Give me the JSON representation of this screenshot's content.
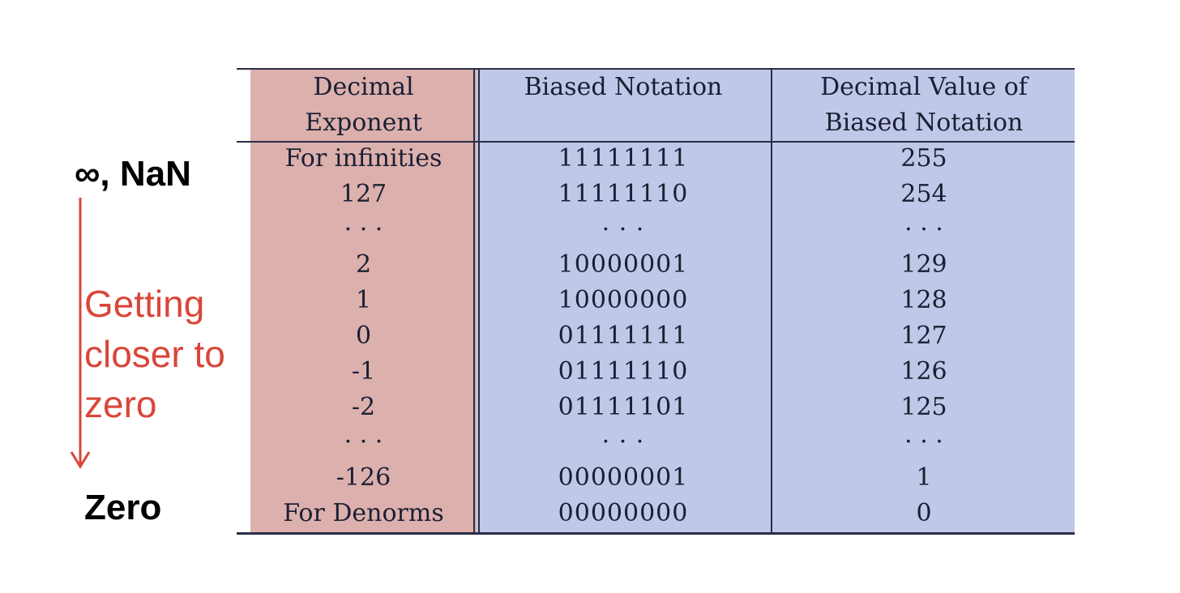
{
  "annotations": {
    "top_label": "∞, NaN",
    "middle_lines": [
      "Getting",
      "closer to",
      "zero"
    ],
    "bottom_label": "Zero",
    "middle_color": "#d9463a"
  },
  "table": {
    "headers": [
      [
        "Decimal",
        "Exponent"
      ],
      [
        "Biased Notation",
        ""
      ],
      [
        "Decimal Value of",
        "Biased Notation"
      ]
    ],
    "rows": [
      [
        "For infinities",
        "11111111",
        "255"
      ],
      [
        "127",
        "11111110",
        "254"
      ],
      [
        "· · ·",
        "· · ·",
        "· · ·"
      ],
      [
        "2",
        "10000001",
        "129"
      ],
      [
        "1",
        "10000000",
        "128"
      ],
      [
        "0",
        "01111111",
        "127"
      ],
      [
        "-1",
        "01111110",
        "126"
      ],
      [
        "-2",
        "01111101",
        "125"
      ],
      [
        "· · ·",
        "· · ·",
        "· · ·"
      ],
      [
        "-126",
        "00000001",
        "1"
      ],
      [
        "For Denorms",
        "00000000",
        "0"
      ]
    ],
    "colors": {
      "exponent_column": "#dcb0ad",
      "biased_columns": "#bfc8e8"
    }
  }
}
